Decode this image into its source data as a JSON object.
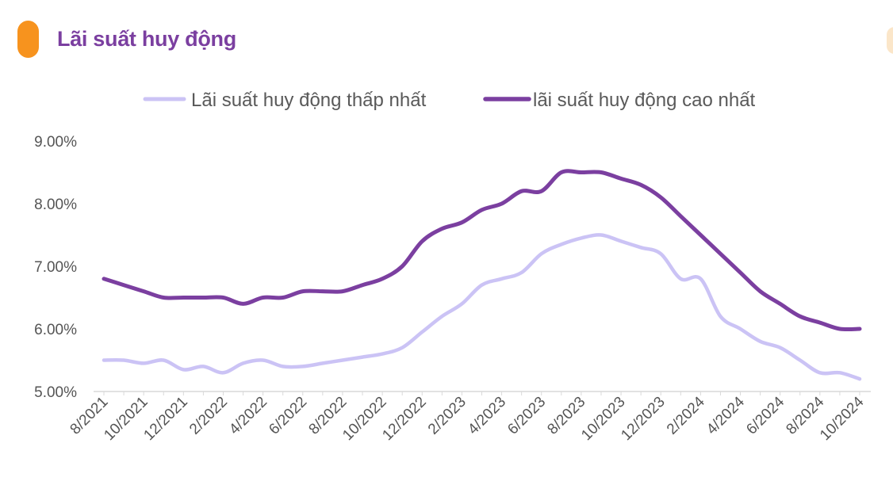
{
  "header": {
    "title": "Lãi suất huy động",
    "accent_color": "#f7931e"
  },
  "chart_data": {
    "type": "line",
    "xlabel": "",
    "ylabel": "",
    "ylim": [
      5.0,
      9.0
    ],
    "grid": false,
    "legend_position": "top",
    "y_tick_values": [
      5.0,
      6.0,
      7.0,
      8.0,
      9.0
    ],
    "y_tick_labels": [
      "5.00%",
      "6.00%",
      "7.00%",
      "8.00%",
      "9.00%"
    ],
    "x": [
      "8/2021",
      "9/2021",
      "10/2021",
      "11/2021",
      "12/2021",
      "1/2022",
      "2/2022",
      "3/2022",
      "4/2022",
      "5/2022",
      "6/2022",
      "7/2022",
      "8/2022",
      "9/2022",
      "10/2022",
      "11/2022",
      "12/2022",
      "1/2023",
      "2/2023",
      "3/2023",
      "4/2023",
      "5/2023",
      "6/2023",
      "7/2023",
      "8/2023",
      "9/2023",
      "10/2023",
      "11/2023",
      "12/2023",
      "1/2024",
      "2/2024",
      "3/2024",
      "4/2024",
      "5/2024",
      "6/2024",
      "7/2024",
      "8/2024",
      "9/2024",
      "10/2024"
    ],
    "x_tick_labels": [
      "8/2021",
      "10/2021",
      "12/2021",
      "2/2022",
      "4/2022",
      "6/2022",
      "8/2022",
      "10/2022",
      "12/2022",
      "2/2023",
      "4/2023",
      "6/2023",
      "8/2023",
      "10/2023",
      "12/2023",
      "2/2024",
      "4/2024",
      "6/2024",
      "8/2024",
      "10/2024"
    ],
    "series": [
      {
        "name": "Lãi suất huy động thấp nhất",
        "color": "#cbc3f5",
        "values": [
          5.5,
          5.5,
          5.45,
          5.5,
          5.35,
          5.4,
          5.3,
          5.45,
          5.5,
          5.4,
          5.4,
          5.45,
          5.5,
          5.55,
          5.6,
          5.7,
          5.95,
          6.2,
          6.4,
          6.7,
          6.8,
          6.9,
          7.2,
          7.35,
          7.45,
          7.5,
          7.4,
          7.3,
          7.2,
          6.8,
          6.8,
          6.2,
          6.0,
          5.8,
          5.7,
          5.5,
          5.3,
          5.3,
          5.2
        ]
      },
      {
        "name": "lãi suất huy động cao nhất",
        "color": "#7b3fa0",
        "values": [
          6.8,
          6.7,
          6.6,
          6.5,
          6.5,
          6.5,
          6.5,
          6.4,
          6.5,
          6.5,
          6.6,
          6.6,
          6.6,
          6.7,
          6.8,
          7.0,
          7.4,
          7.6,
          7.7,
          7.9,
          8.0,
          8.2,
          8.2,
          8.5,
          8.5,
          8.5,
          8.4,
          8.3,
          8.1,
          7.8,
          7.5,
          7.2,
          6.9,
          6.6,
          6.4,
          6.2,
          6.1,
          6.0,
          6.0
        ]
      }
    ]
  }
}
